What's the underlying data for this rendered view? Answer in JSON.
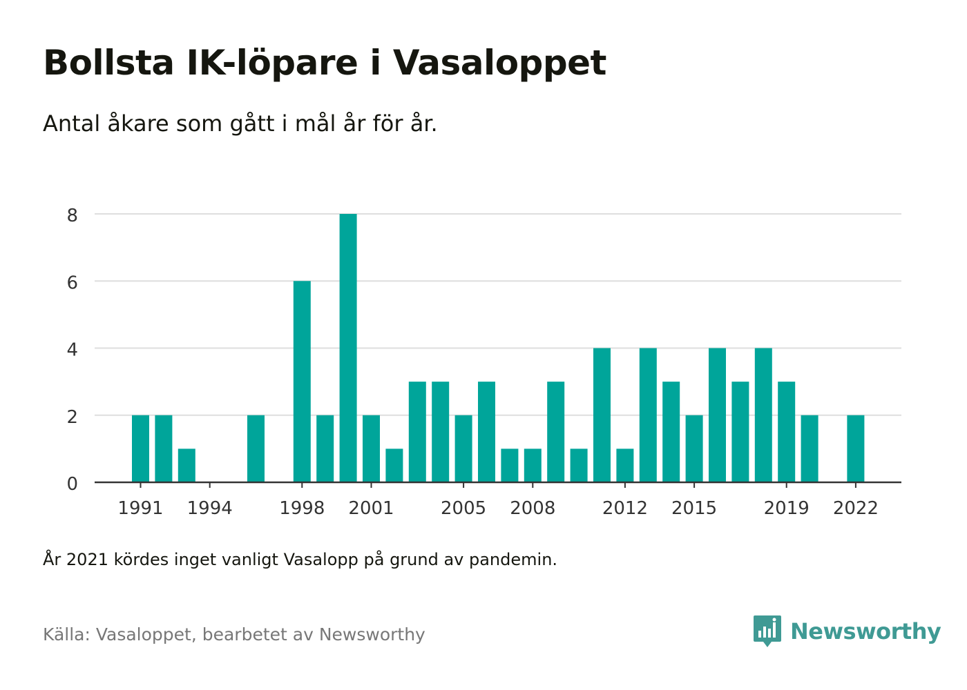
{
  "title": "Bollsta IK-löpare i Vasaloppet",
  "subtitle": "Antal åkare som gått i mål år för år.",
  "note": "År 2021 kördes inget vanligt Vasalopp på grund av pandemin.",
  "source": "Källa: Vasaloppet, bearbetet av Newsworthy",
  "brand": {
    "name": "Newsworthy",
    "icon": "newsworthy-logo-icon",
    "color": "#3f9a94"
  },
  "chart_data": {
    "type": "bar",
    "title": "Bollsta IK-löpare i Vasaloppet",
    "subtitle": "Antal åkare som gått i mål år för år.",
    "xlabel": "",
    "ylabel": "",
    "ylim": [
      0,
      8
    ],
    "yticks": [
      0,
      2,
      4,
      6,
      8
    ],
    "xtick_labels": [
      "1991",
      "1994",
      "1998",
      "2001",
      "2005",
      "2008",
      "2012",
      "2015",
      "2019",
      "2022"
    ],
    "grid": true,
    "legend": "none",
    "bar_color": "#00a59a",
    "categories": [
      "1991",
      "1992",
      "1993",
      "1994",
      "1995",
      "1996",
      "1997",
      "1998",
      "1999",
      "2000",
      "2001",
      "2002",
      "2003",
      "2004",
      "2005",
      "2006",
      "2007",
      "2008",
      "2009",
      "2010",
      "2011",
      "2012",
      "2013",
      "2014",
      "2015",
      "2016",
      "2017",
      "2018",
      "2019",
      "2020",
      "2021",
      "2022"
    ],
    "values": [
      2,
      2,
      1,
      0,
      0,
      2,
      0,
      6,
      2,
      8,
      2,
      1,
      3,
      3,
      2,
      3,
      1,
      1,
      3,
      1,
      4,
      1,
      4,
      3,
      2,
      4,
      3,
      4,
      3,
      2,
      0,
      2
    ]
  }
}
